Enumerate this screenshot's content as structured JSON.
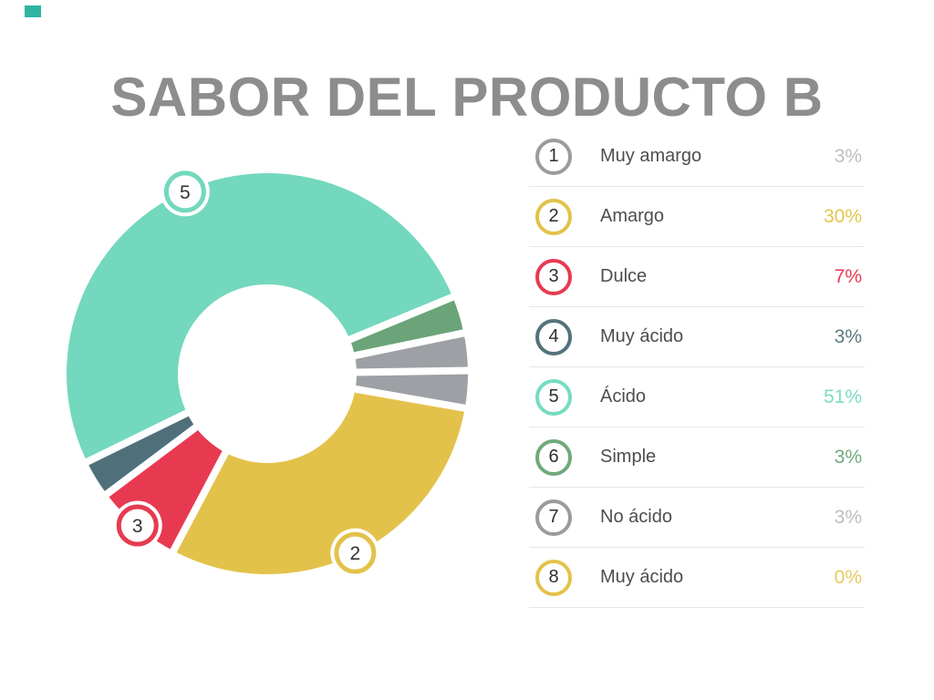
{
  "page": {
    "title": "SABOR DEL PRODUCTO B",
    "accent_square_color": "#2FB4A3",
    "title_color": "#8d8d8d",
    "background_color": "#ffffff"
  },
  "chart_data": {
    "type": "pie",
    "subtype": "donut",
    "title": "SABOR DEL PRODUCTO B",
    "unit": "%",
    "legend_position": "right",
    "gridlines": false,
    "clockwise": true,
    "start_angle_cw_from_12_deg": 89.1,
    "donut_hole_ratio": 0.45,
    "segment_numbers": [
      1,
      2,
      3,
      4,
      5,
      6,
      7,
      8
    ],
    "categories": [
      "Muy amargo",
      "Amargo",
      "Dulce",
      "Muy ácido",
      "Ácido",
      "Simple",
      "No ácido",
      "Muy ácido"
    ],
    "values": [
      3,
      30,
      7,
      3,
      51,
      3,
      3,
      0
    ],
    "value_labels": [
      "3%",
      "30%",
      "7%",
      "3%",
      "51%",
      "3%",
      "3%",
      "0%"
    ],
    "colors": [
      "#9DA0A4",
      "#E3C24B",
      "#E73A51",
      "#4F707A",
      "#73D8BD",
      "#6BA478",
      "#9DA0A4",
      "#E3C24B"
    ],
    "ring_colors": [
      "#9B9B9B",
      "#E3C24B",
      "#E73A51",
      "#53727C",
      "#76DBC1",
      "#6FA97C",
      "#9B9B9B",
      "#E3C24B"
    ],
    "value_text_colors": [
      "#BDBDBD",
      "#E4C44D",
      "#E73A51",
      "#5A7A84",
      "#7CDCC3",
      "#6FA97C",
      "#BDBDBD",
      "#E7CB61"
    ],
    "badge_slices": [
      2,
      3,
      5
    ],
    "badge_number_color": "#333333",
    "separator_color": "#ffffff"
  }
}
